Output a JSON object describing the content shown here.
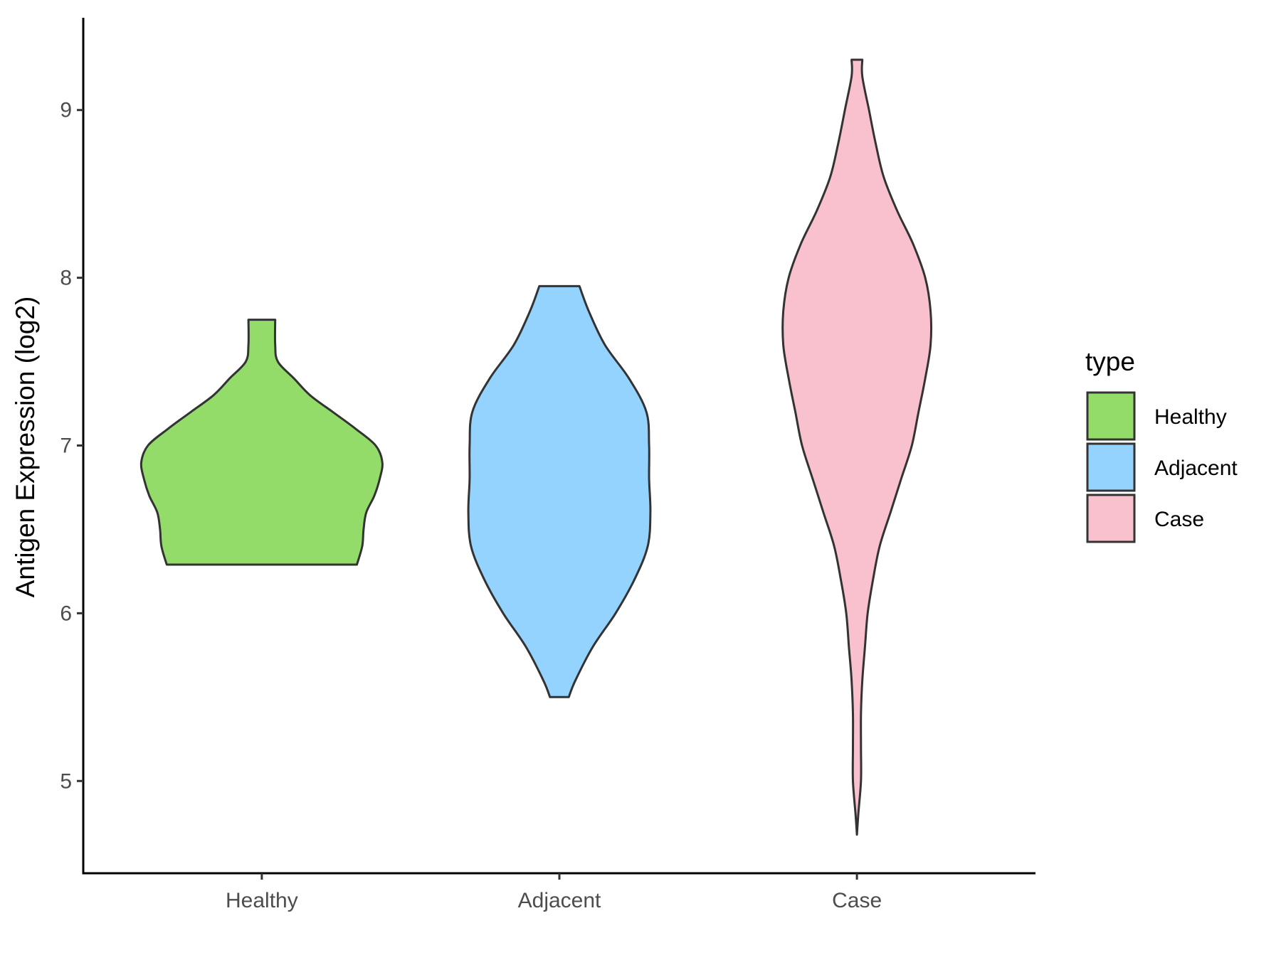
{
  "chart_data": {
    "type": "violin",
    "title": "",
    "xlabel": "",
    "ylabel": "Antigen Expression (log2)",
    "categories": [
      "Healthy",
      "Adjacent",
      "Case"
    ],
    "yticks": [
      "5",
      "6",
      "7",
      "8",
      "9"
    ],
    "ylim": [
      4.45,
      9.55
    ],
    "grid": false,
    "legend": {
      "title": "type",
      "position": "right",
      "entries": [
        "Healthy",
        "Adjacent",
        "Case"
      ]
    },
    "series": [
      {
        "category": "Healthy",
        "color": "#93dc69",
        "range": [
          6.29,
          7.75
        ],
        "density": [
          [
            6.29,
            0.71
          ],
          [
            6.4,
            0.75
          ],
          [
            6.5,
            0.76
          ],
          [
            6.6,
            0.78
          ],
          [
            6.7,
            0.84
          ],
          [
            6.8,
            0.88
          ],
          [
            6.9,
            0.9
          ],
          [
            7.0,
            0.85
          ],
          [
            7.1,
            0.7
          ],
          [
            7.2,
            0.53
          ],
          [
            7.3,
            0.36
          ],
          [
            7.4,
            0.24
          ],
          [
            7.5,
            0.12
          ],
          [
            7.6,
            0.1
          ],
          [
            7.75,
            0.1
          ]
        ]
      },
      {
        "category": "Adjacent",
        "color": "#94d3fe",
        "range": [
          5.5,
          7.95
        ],
        "density": [
          [
            5.5,
            0.07
          ],
          [
            5.6,
            0.12
          ],
          [
            5.8,
            0.25
          ],
          [
            6.0,
            0.42
          ],
          [
            6.2,
            0.56
          ],
          [
            6.4,
            0.66
          ],
          [
            6.6,
            0.68
          ],
          [
            6.8,
            0.67
          ],
          [
            7.0,
            0.67
          ],
          [
            7.2,
            0.65
          ],
          [
            7.4,
            0.52
          ],
          [
            7.6,
            0.34
          ],
          [
            7.8,
            0.22
          ],
          [
            7.95,
            0.15
          ]
        ]
      },
      {
        "category": "Case",
        "color": "#f8c1cd",
        "range": [
          4.68,
          9.3
        ],
        "density": [
          [
            4.68,
            0.0
          ],
          [
            4.8,
            0.01
          ],
          [
            5.0,
            0.03
          ],
          [
            5.2,
            0.03
          ],
          [
            5.4,
            0.03
          ],
          [
            5.6,
            0.04
          ],
          [
            5.8,
            0.06
          ],
          [
            6.0,
            0.08
          ],
          [
            6.2,
            0.12
          ],
          [
            6.4,
            0.17
          ],
          [
            6.6,
            0.25
          ],
          [
            6.8,
            0.33
          ],
          [
            7.0,
            0.41
          ],
          [
            7.2,
            0.46
          ],
          [
            7.4,
            0.51
          ],
          [
            7.6,
            0.55
          ],
          [
            7.8,
            0.55
          ],
          [
            8.0,
            0.51
          ],
          [
            8.2,
            0.42
          ],
          [
            8.4,
            0.3
          ],
          [
            8.6,
            0.2
          ],
          [
            8.8,
            0.14
          ],
          [
            9.0,
            0.09
          ],
          [
            9.2,
            0.04
          ],
          [
            9.3,
            0.04
          ]
        ]
      }
    ]
  }
}
